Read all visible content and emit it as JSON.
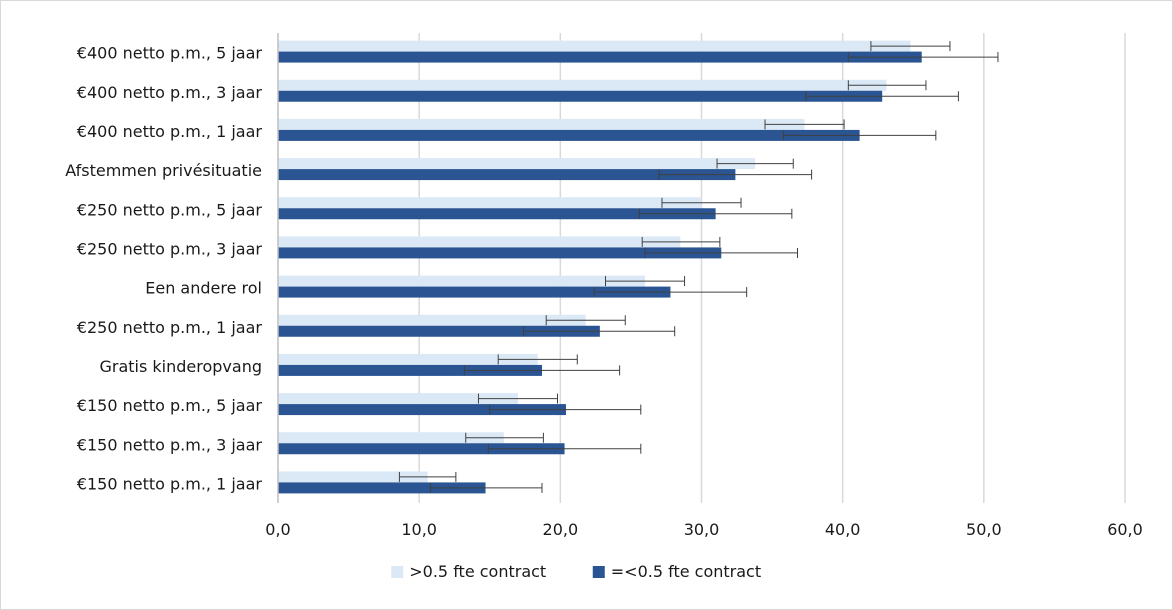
{
  "chart_data": {
    "type": "bar",
    "orientation": "horizontal",
    "title": "",
    "xlabel": "",
    "ylabel": "",
    "xlim": [
      0,
      60
    ],
    "xticks": [
      0,
      10,
      20,
      30,
      40,
      50,
      60
    ],
    "tick_labels": [
      "0,0",
      "10,0",
      "20,0",
      "30,0",
      "40,0",
      "50,0",
      "60,0"
    ],
    "grid": "vertical",
    "legend": "bottom",
    "categories": [
      "€400 netto p.m., 5 jaar",
      "€400 netto p.m., 3 jaar",
      "€400 netto p.m., 1 jaar",
      "Afstemmen privésituatie",
      "€250 netto p.m., 5 jaar",
      "€250 netto p.m., 3 jaar",
      "Een andere rol",
      "€250 netto p.m., 1 jaar",
      "Gratis kinderopvang",
      "€150 netto p.m., 5 jaar",
      "€150 netto p.m., 3 jaar",
      "€150 netto p.m., 1 jaar"
    ],
    "series": [
      {
        "name": ">0.5 fte contract",
        "color": "#dbe9f7",
        "values": [
          44.8,
          43.1,
          37.3,
          33.8,
          30.0,
          28.5,
          26.0,
          21.8,
          18.4,
          17.0,
          16.0,
          10.6
        ],
        "error_low": [
          42.0,
          40.4,
          34.5,
          31.1,
          27.2,
          25.8,
          23.2,
          19.0,
          15.6,
          14.2,
          13.3,
          8.6
        ],
        "error_high": [
          47.6,
          45.9,
          40.1,
          36.5,
          32.8,
          31.3,
          28.8,
          24.6,
          21.2,
          19.8,
          18.8,
          12.6
        ]
      },
      {
        "name": "=<0.5 fte contract",
        "color": "#2a5592",
        "values": [
          45.6,
          42.8,
          41.2,
          32.4,
          31.0,
          31.4,
          27.8,
          22.8,
          18.7,
          20.4,
          20.3,
          14.7
        ],
        "error_low": [
          40.4,
          37.4,
          35.8,
          27.0,
          25.6,
          26.0,
          22.4,
          17.4,
          13.2,
          15.0,
          14.9,
          10.8
        ],
        "error_high": [
          51.0,
          48.2,
          46.6,
          37.8,
          36.4,
          36.8,
          33.2,
          28.1,
          24.2,
          25.7,
          25.7,
          18.7
        ]
      }
    ]
  }
}
